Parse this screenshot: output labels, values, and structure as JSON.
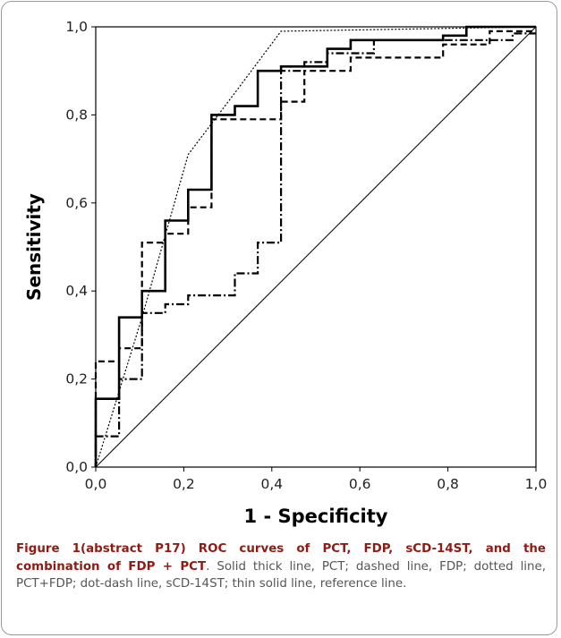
{
  "chart_data": {
    "type": "line",
    "xlabel": "1 - Specificity",
    "ylabel": "Sensitivity",
    "xlim": [
      0,
      1
    ],
    "ylim": [
      0,
      1
    ],
    "xticks": [
      "0,0",
      "0,2",
      "0,4",
      "0,6",
      "0,8",
      "1,0"
    ],
    "yticks": [
      "0,0",
      "0,2",
      "0,4",
      "0,6",
      "0,8",
      "1,0"
    ],
    "grid": false,
    "legend": "none",
    "series": [
      {
        "style": "solid-thick",
        "points": [
          [
            0,
            0
          ],
          [
            0,
            0.155
          ],
          [
            0.053,
            0.155
          ],
          [
            0.053,
            0.34
          ],
          [
            0.105,
            0.34
          ],
          [
            0.105,
            0.39
          ],
          [
            0.105,
            0.4
          ],
          [
            0.158,
            0.4
          ],
          [
            0.158,
            0.56
          ],
          [
            0.21,
            0.56
          ],
          [
            0.21,
            0.63
          ],
          [
            0.263,
            0.63
          ],
          [
            0.263,
            0.8
          ],
          [
            0.316,
            0.8
          ],
          [
            0.316,
            0.82
          ],
          [
            0.368,
            0.82
          ],
          [
            0.368,
            0.9
          ],
          [
            0.421,
            0.9
          ],
          [
            0.421,
            0.91
          ],
          [
            0.526,
            0.91
          ],
          [
            0.526,
            0.95
          ],
          [
            0.579,
            0.95
          ],
          [
            0.579,
            0.97
          ],
          [
            0.789,
            0.97
          ],
          [
            0.789,
            0.98
          ],
          [
            0.842,
            0.98
          ],
          [
            0.842,
            1.0
          ],
          [
            1.0,
            1.0
          ]
        ]
      },
      {
        "style": "dashed",
        "points": [
          [
            0,
            0
          ],
          [
            0,
            0.24
          ],
          [
            0.053,
            0.24
          ],
          [
            0.053,
            0.27
          ],
          [
            0.105,
            0.27
          ],
          [
            0.105,
            0.51
          ],
          [
            0.158,
            0.51
          ],
          [
            0.158,
            0.53
          ],
          [
            0.21,
            0.53
          ],
          [
            0.21,
            0.59
          ],
          [
            0.263,
            0.59
          ],
          [
            0.263,
            0.79
          ],
          [
            0.421,
            0.79
          ],
          [
            0.421,
            0.83
          ],
          [
            0.474,
            0.83
          ],
          [
            0.474,
            0.9
          ],
          [
            0.579,
            0.9
          ],
          [
            0.579,
            0.93
          ],
          [
            0.789,
            0.93
          ],
          [
            0.789,
            0.96
          ],
          [
            0.895,
            0.96
          ],
          [
            0.895,
            0.99
          ],
          [
            1.0,
            0.99
          ]
        ]
      },
      {
        "style": "dotted",
        "points": [
          [
            0,
            0
          ],
          [
            0.105,
            0.34
          ],
          [
            0.21,
            0.71
          ],
          [
            0.316,
            0.85
          ],
          [
            0.421,
            0.99
          ],
          [
            1.0,
            1.0
          ]
        ]
      },
      {
        "style": "dot-dash",
        "points": [
          [
            0,
            0
          ],
          [
            0,
            0.07
          ],
          [
            0.053,
            0.07
          ],
          [
            0.053,
            0.2
          ],
          [
            0.105,
            0.2
          ],
          [
            0.105,
            0.35
          ],
          [
            0.158,
            0.35
          ],
          [
            0.158,
            0.37
          ],
          [
            0.21,
            0.37
          ],
          [
            0.21,
            0.39
          ],
          [
            0.316,
            0.39
          ],
          [
            0.316,
            0.44
          ],
          [
            0.368,
            0.44
          ],
          [
            0.368,
            0.51
          ],
          [
            0.421,
            0.51
          ],
          [
            0.421,
            0.9
          ],
          [
            0.474,
            0.9
          ],
          [
            0.474,
            0.92
          ],
          [
            0.526,
            0.92
          ],
          [
            0.526,
            0.94
          ],
          [
            0.632,
            0.94
          ],
          [
            0.632,
            0.97
          ],
          [
            0.947,
            0.97
          ],
          [
            0.947,
            0.985
          ],
          [
            1.0,
            0.985
          ]
        ]
      },
      {
        "style": "reference",
        "points": [
          [
            0,
            0
          ],
          [
            1,
            1
          ]
        ]
      }
    ]
  },
  "caption": {
    "bold": "Figure 1(abstract P17) ROC curves of PCT, FDP, sCD-14ST, and the combination of FDP + PCT",
    "rest": ". Solid thick line, PCT; dashed line, FDP; dotted line, PCT+FDP; dot-dash line, sCD-14ST; thin solid line, reference line."
  }
}
